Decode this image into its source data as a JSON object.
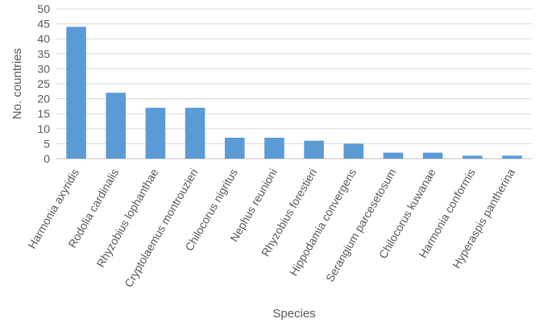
{
  "chart_data": {
    "type": "bar",
    "categories": [
      "Harmonia axyridis",
      "Rodolia cardinalis",
      "Rhyzobius lophanthae",
      "Cryptolaemus montrouzieri",
      "Chilocorus nigritus",
      "Nephus reunioni",
      "Rhyzobius forestieri",
      "Hippodamia convergens",
      "Serangium parcesetosum",
      "Chilocorus kuwanae",
      "Harmonia conformis",
      "Hyperaspis pantherina"
    ],
    "values": [
      44,
      22,
      17,
      17,
      7,
      7,
      6,
      5,
      2,
      2,
      1,
      1
    ],
    "xlabel": "Species",
    "ylabel": "No. countries",
    "ylim": [
      0,
      50
    ],
    "yticks": [
      0,
      5,
      10,
      15,
      20,
      25,
      30,
      35,
      40,
      45,
      50
    ],
    "grid": true,
    "bar_color": "#5b9bd5"
  }
}
